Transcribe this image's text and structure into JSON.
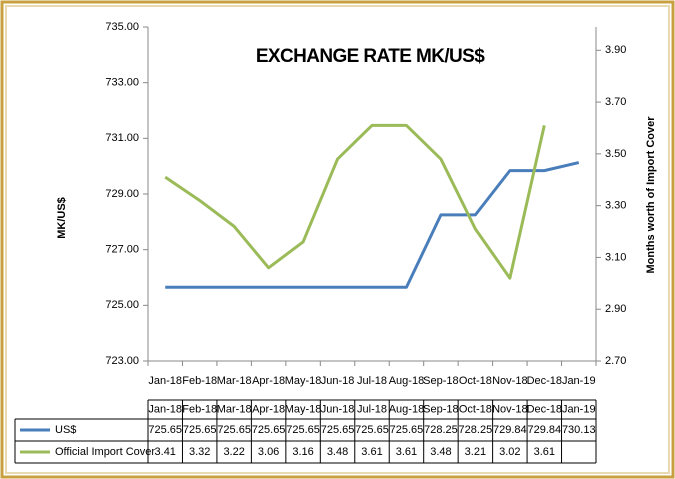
{
  "chart_data": {
    "type": "line",
    "title": "EXCHANGE RATE MK/US$",
    "y_label": "MK/US$",
    "y2_label": "Months worth of Import Cover",
    "categories": [
      "Jan-18",
      "Feb-18",
      "Mar-18",
      "Apr-18",
      "May-18",
      "Jun-18",
      "Jul-18",
      "Aug-18",
      "Sep-18",
      "Oct-18",
      "Nov-18",
      "Dec-18",
      "Jan-19"
    ],
    "series": [
      {
        "name": "US$",
        "color": "#4a7ebb",
        "values": [
          725.65,
          725.65,
          725.65,
          725.65,
          725.65,
          725.65,
          725.65,
          725.65,
          728.25,
          728.25,
          729.84,
          729.84,
          730.13
        ]
      },
      {
        "name": "Official Import Cover",
        "color": "#9bbb59",
        "axis": "y2",
        "values": [
          3.41,
          3.32,
          3.22,
          3.06,
          3.16,
          3.48,
          3.61,
          3.61,
          3.48,
          3.21,
          3.02,
          3.61,
          null
        ]
      }
    ],
    "ylim": [
      723,
      735
    ],
    "yticks": [
      {
        "value": 723,
        "label": "723.00"
      },
      {
        "value": 725,
        "label": "725.00"
      },
      {
        "value": 727,
        "label": "727.00"
      },
      {
        "value": 729,
        "label": "729.00"
      },
      {
        "value": 731,
        "label": "731.00"
      },
      {
        "value": 733,
        "label": "733.00"
      },
      {
        "value": 735,
        "label": "735.00"
      }
    ],
    "y2lim": [
      2.7,
      3.99
    ],
    "y2ticks": [
      {
        "value": 2.7,
        "label": "2.70"
      },
      {
        "value": 2.9,
        "label": "2.90"
      },
      {
        "value": 3.1,
        "label": "3.10"
      },
      {
        "value": 3.3,
        "label": "3.30"
      },
      {
        "value": 3.5,
        "label": "3.50"
      },
      {
        "value": 3.7,
        "label": "3.70"
      },
      {
        "value": 3.9,
        "label": "3.90"
      }
    ],
    "grid": false,
    "data_table": true
  }
}
